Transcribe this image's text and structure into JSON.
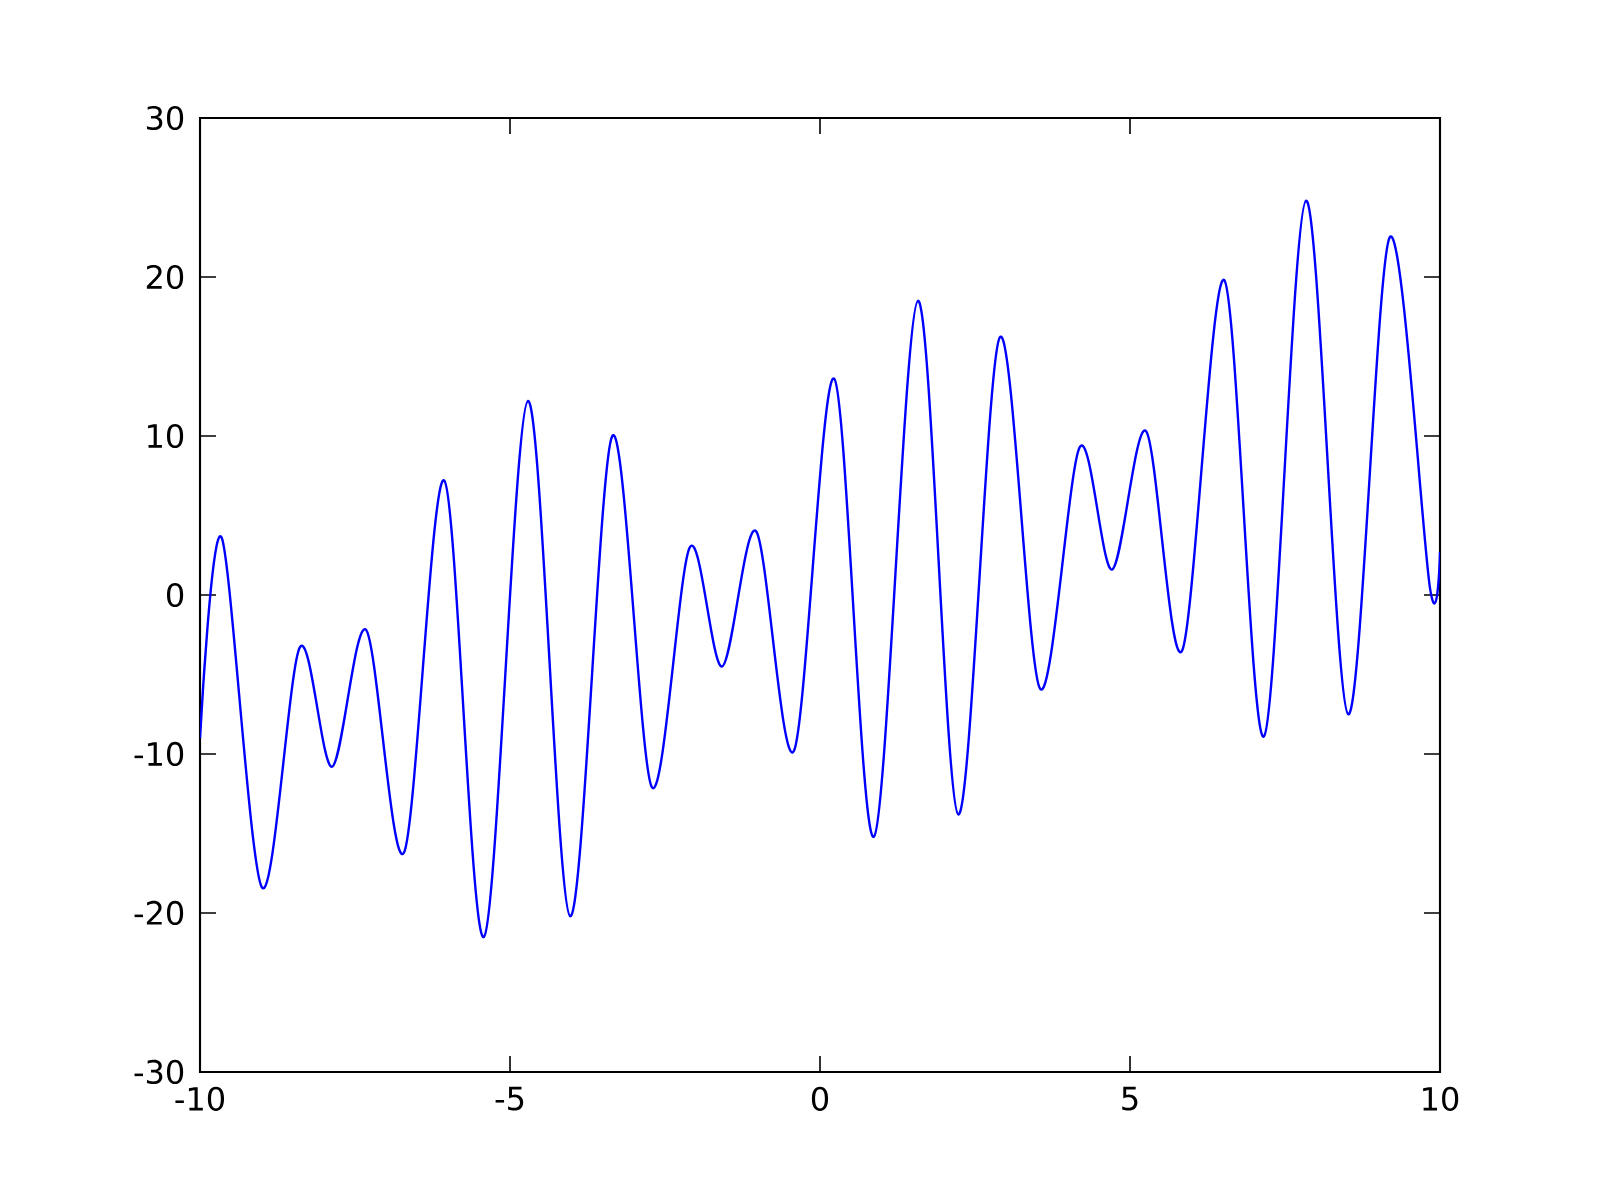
{
  "chart_data": {
    "type": "line",
    "color": "#0000ff",
    "marker": "none",
    "line_style": "solid",
    "x": [
      -10,
      -9.65,
      -9.0,
      -8.39,
      -7.87,
      -7.32,
      -6.71,
      -6.06,
      -5.42,
      -4.71,
      -4.03,
      -3.35,
      -2.71,
      -2.1,
      -1.58,
      -1.03,
      -0.42,
      0.23,
      0.87,
      1.58,
      2.23,
      2.9,
      3.55,
      4.19,
      4.71,
      5.26,
      5.84,
      6.52,
      7.16,
      7.84,
      8.52,
      9.19,
      9.84,
      10
    ],
    "values": [
      -9,
      3.6,
      -18.4,
      -3.3,
      -10.8,
      -2.2,
      -16.2,
      7.2,
      -21.5,
      12.2,
      -20.2,
      10.0,
      -12.1,
      3.0,
      -4.5,
      4.0,
      -9.8,
      13.6,
      -15.2,
      18.5,
      -13.8,
      16.2,
      -5.9,
      9.3,
      1.6,
      10.3,
      -3.5,
      19.8,
      -8.9,
      24.8,
      -7.5,
      22.5,
      0.4,
      2.7
    ],
    "xlim": [
      -10,
      10
    ],
    "ylim": [
      -30,
      30
    ],
    "xticks": [
      -10,
      -5,
      0,
      5,
      10
    ],
    "yticks": [
      -30,
      -20,
      -10,
      0,
      10,
      20,
      30
    ]
  }
}
